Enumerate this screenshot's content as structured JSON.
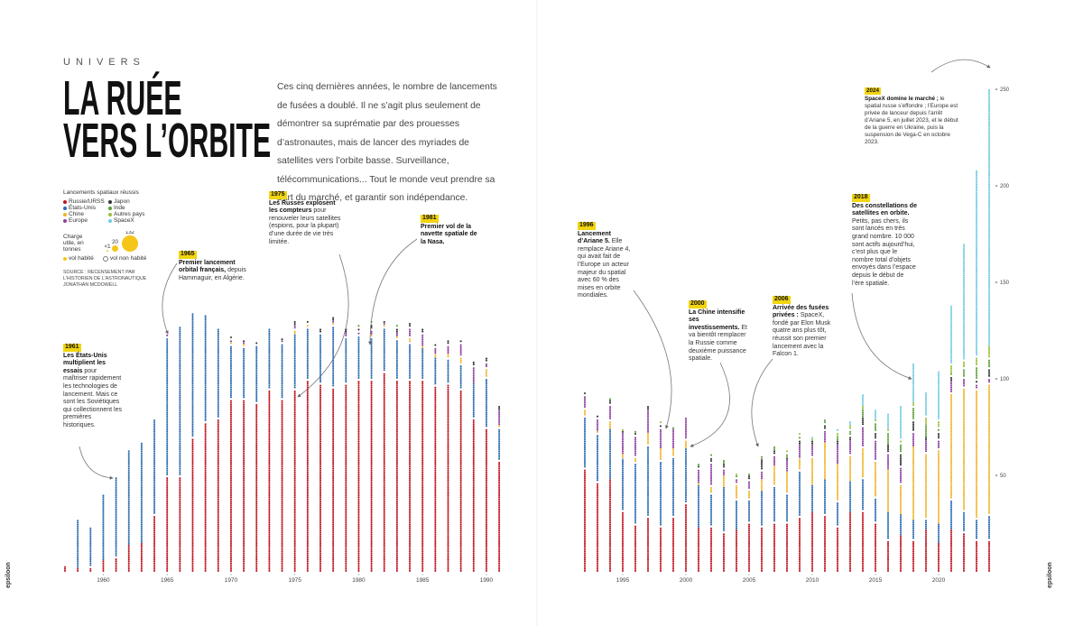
{
  "page": {
    "section": "UNIVERS",
    "title_lines": [
      "LA RUÉE",
      "VERS L’ORBITE"
    ],
    "intro": "Ces cinq dernières années, le nombre de lancements de fusées a doublé. Il ne s’agit plus seulement de démontrer sa suprématie par des prouesses d’astronautes, mais de lancer des myriades de satellites vers l’orbite basse. Surveillance, télécommunications... Tout le monde veut prendre sa part du marché, et garantir son indépendance.",
    "source": "SOURCE : RECENSEMENT PAR L’HISTORIEN DE L’ASTRONAUTIQUE JONATHAN MCDOWELL",
    "footer": "epsiloon",
    "annotations": [
      {
        "year": "1961",
        "bold": "Les États-Unis multiplient les essais",
        "text": " pour maîtriser rapidement les technologies de lancement. Mais ce sont les Soviétiques qui collectionnent les premières historiques."
      },
      {
        "year": "1965",
        "bold": "Premier lancement orbital français,",
        "text": " depuis Hammaguir, en Algérie."
      },
      {
        "year": "1975",
        "bold": "Les Russes explosent les compteurs",
        "text": " pour renouveler leurs satellites (espions, pour la plupart) d’une durée de vie très limitée."
      },
      {
        "year": "1981",
        "bold": "Premier vol de la navette spatiale de la Nasa.",
        "text": ""
      },
      {
        "year": "1996",
        "bold": "Lancement d’Ariane 5.",
        "text": " Elle remplace Ariane 4, qui avait fait de l’Europe un acteur majeur du spatial avec 60 % des mises en orbite mondiales."
      },
      {
        "year": "2000",
        "bold": "La Chine intensifie ses investissements.",
        "text": " Et va bientôt remplacer la Russie comme deuxième puissance spatiale."
      },
      {
        "year": "2006",
        "bold": "Arrivée des fusées privées :",
        "text": " SpaceX, fondé par Elon Musk quatre ans plus tôt, réussit son premier lancement avec la Falcon 1."
      },
      {
        "year": "2018",
        "bold": "Des constellations de satellites en orbite.",
        "text": " Petits, pas chers, ils sont lancés en très grand nombre. 10 000 sont actifs aujourd’hui, c’est plus que le nombre total d’objets envoyés dans l’espace depuis le début de l’ère spatiale."
      },
      {
        "year": "2024",
        "bold": "SpaceX domine le marché ;",
        "text": " le spatial russe s’effondre ; l’Europe est privée de lanceur depuis l’arrêt d’Ariane 5, en juillet 2023, et le début de la guerre en Ukraine, puis la suspension de Vega-C en octobre 2023."
      }
    ]
  },
  "chart_data": {
    "type": "dotplot",
    "title": "Lancements spatiaux réussis",
    "x": [
      1957,
      1958,
      1959,
      1960,
      1961,
      1962,
      1963,
      1964,
      1965,
      1966,
      1967,
      1968,
      1969,
      1970,
      1971,
      1972,
      1973,
      1974,
      1975,
      1976,
      1977,
      1978,
      1979,
      1980,
      1981,
      1982,
      1983,
      1984,
      1985,
      1986,
      1987,
      1988,
      1989,
      1990,
      1991,
      1992,
      1993,
      1994,
      1995,
      1996,
      1997,
      1998,
      1999,
      2000,
      2001,
      2002,
      2003,
      2004,
      2005,
      2006,
      2007,
      2008,
      2009,
      2010,
      2011,
      2012,
      2013,
      2014,
      2015,
      2016,
      2017,
      2018,
      2019,
      2020,
      2021,
      2022,
      2023,
      2024
    ],
    "panels": [
      {
        "xlim": [
          1957,
          1991
        ]
      },
      {
        "xlim": [
          1992,
          2024
        ]
      }
    ],
    "xticks": [
      1960,
      1965,
      1970,
      1975,
      1980,
      1985,
      1990,
      1995,
      2000,
      2005,
      2010,
      2015,
      2020
    ],
    "ylim": [
      0,
      270
    ],
    "yticks": [
      50,
      100,
      150,
      200,
      250
    ],
    "series": [
      {
        "name": "Russie/URSS",
        "color": "#c0121f",
        "values": [
          4,
          2,
          3,
          6,
          8,
          14,
          15,
          30,
          50,
          50,
          70,
          78,
          80,
          90,
          90,
          88,
          95,
          90,
          95,
          100,
          98,
          96,
          98,
          100,
          100,
          104,
          100,
          100,
          100,
          97,
          98,
          95,
          80,
          75,
          58,
          54,
          47,
          48,
          32,
          25,
          29,
          24,
          29,
          36,
          23,
          24,
          21,
          22,
          26,
          24,
          26,
          26,
          29,
          31,
          30,
          24,
          31,
          32,
          26,
          17,
          19,
          17,
          22,
          15,
          22,
          21,
          17,
          17
        ]
      },
      {
        "name": "États-Unis",
        "color": "#2b6cb0",
        "values": [
          0,
          26,
          20,
          34,
          42,
          50,
          52,
          50,
          72,
          78,
          65,
          55,
          46,
          28,
          27,
          30,
          31,
          29,
          28,
          27,
          26,
          32,
          24,
          23,
          22,
          23,
          21,
          19,
          16,
          14,
          13,
          13,
          18,
          26,
          17,
          27,
          25,
          26,
          27,
          32,
          37,
          34,
          31,
          28,
          22,
          17,
          23,
          16,
          12,
          18,
          19,
          15,
          24,
          14,
          18,
          13,
          16,
          17,
          13,
          14,
          11,
          10,
          6,
          10,
          16,
          11,
          11,
          13
        ]
      },
      {
        "name": "Chine",
        "color": "#f0b429",
        "values": [
          0,
          0,
          0,
          0,
          0,
          0,
          0,
          0,
          0,
          0,
          0,
          0,
          0,
          1,
          1,
          0,
          0,
          0,
          3,
          2,
          0,
          1,
          0,
          0,
          1,
          1,
          1,
          3,
          1,
          2,
          2,
          4,
          0,
          5,
          1,
          4,
          1,
          5,
          2,
          3,
          6,
          6,
          4,
          5,
          1,
          4,
          6,
          8,
          5,
          6,
          10,
          11,
          6,
          15,
          19,
          19,
          14,
          16,
          19,
          22,
          16,
          38,
          34,
          39,
          55,
          64,
          67,
          68
        ]
      },
      {
        "name": "Europe",
        "color": "#8e3fa0",
        "values": [
          0,
          0,
          0,
          0,
          0,
          0,
          0,
          0,
          1,
          0,
          0,
          0,
          0,
          2,
          1,
          0,
          0,
          1,
          2,
          0,
          0,
          1,
          2,
          2,
          3,
          1,
          2,
          5,
          7,
          4,
          5,
          7,
          9,
          3,
          8,
          7,
          7,
          8,
          11,
          11,
          12,
          11,
          10,
          12,
          8,
          12,
          4,
          3,
          5,
          5,
          6,
          6,
          7,
          6,
          7,
          10,
          7,
          11,
          11,
          9,
          9,
          8,
          6,
          5,
          6,
          5,
          3,
          3
        ]
      },
      {
        "name": "Japon",
        "color": "#333333",
        "values": [
          0,
          0,
          0,
          0,
          0,
          0,
          0,
          0,
          0,
          0,
          0,
          0,
          0,
          1,
          2,
          1,
          0,
          1,
          2,
          1,
          2,
          3,
          2,
          2,
          3,
          1,
          3,
          3,
          2,
          2,
          3,
          2,
          2,
          3,
          2,
          1,
          1,
          2,
          1,
          1,
          2,
          2,
          0,
          0,
          1,
          3,
          2,
          0,
          2,
          6,
          2,
          1,
          3,
          2,
          3,
          2,
          3,
          4,
          4,
          4,
          7,
          6,
          2,
          4,
          3,
          0,
          2,
          5
        ]
      },
      {
        "name": "Inde",
        "color": "#5a9e3a",
        "values": [
          0,
          0,
          0,
          0,
          0,
          0,
          0,
          0,
          0,
          0,
          0,
          0,
          0,
          0,
          0,
          0,
          0,
          0,
          0,
          0,
          0,
          0,
          0,
          1,
          1,
          0,
          1,
          0,
          0,
          0,
          0,
          0,
          0,
          0,
          0,
          0,
          0,
          1,
          0,
          1,
          0,
          0,
          1,
          0,
          1,
          1,
          2,
          1,
          1,
          1,
          3,
          3,
          2,
          0,
          3,
          2,
          3,
          4,
          5,
          7,
          5,
          7,
          6,
          2,
          1,
          5,
          7,
          5
        ]
      },
      {
        "name": "Autres pays",
        "color": "#9bbf3b",
        "values": [
          0,
          0,
          0,
          0,
          0,
          0,
          0,
          0,
          0,
          0,
          0,
          0,
          0,
          0,
          0,
          0,
          0,
          0,
          0,
          0,
          0,
          0,
          0,
          0,
          0,
          0,
          0,
          0,
          0,
          0,
          0,
          0,
          0,
          0,
          0,
          0,
          0,
          0,
          1,
          0,
          0,
          1,
          0,
          0,
          0,
          0,
          0,
          1,
          0,
          0,
          0,
          1,
          2,
          1,
          0,
          3,
          2,
          2,
          1,
          1,
          2,
          2,
          5,
          4,
          5,
          4,
          5,
          6
        ]
      },
      {
        "name": "SpaceX",
        "color": "#72cbe0",
        "values": [
          0,
          0,
          0,
          0,
          0,
          0,
          0,
          0,
          0,
          0,
          0,
          0,
          0,
          0,
          0,
          0,
          0,
          0,
          0,
          0,
          0,
          0,
          0,
          0,
          0,
          0,
          0,
          0,
          0,
          0,
          0,
          0,
          0,
          0,
          0,
          0,
          0,
          0,
          0,
          0,
          0,
          0,
          0,
          0,
          0,
          0,
          0,
          0,
          0,
          0,
          0,
          0,
          0,
          2,
          0,
          2,
          3,
          6,
          6,
          8,
          18,
          21,
          13,
          26,
          31,
          61,
          96,
          134
        ]
      }
    ],
    "size_legend": {
      "title": "Charge utile, en tonnes",
      "sizes": [
        {
          "value": 1,
          "label": "<1"
        },
        20,
        132
      ],
      "color": "#f5c518"
    },
    "flight_legend": [
      "vol habité",
      "vol non habité"
    ]
  }
}
